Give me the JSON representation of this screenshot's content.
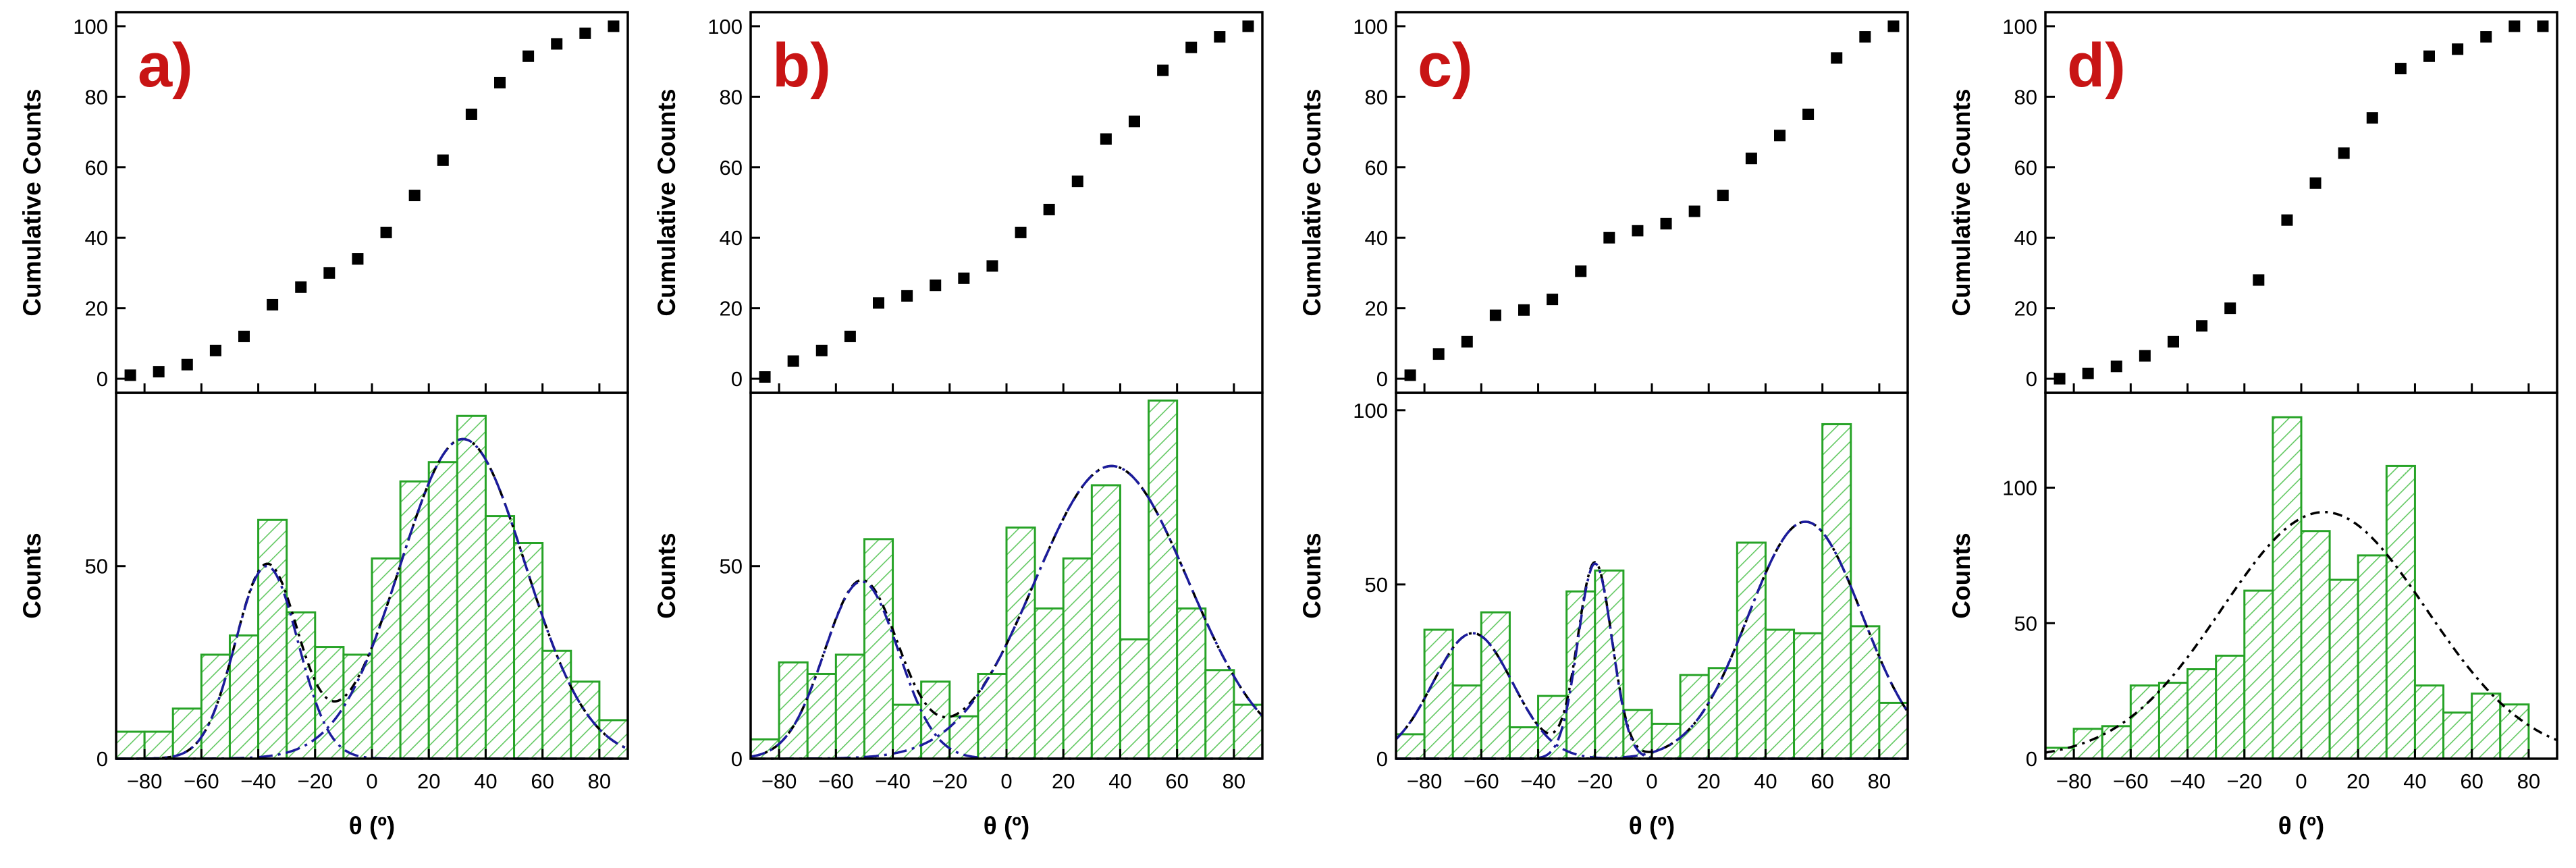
{
  "colors": {
    "bar_edge": "#27a327",
    "bar_hatch": "#62c862",
    "component_fit": "#1c1c9c",
    "total_fit": "#000000",
    "panel_label": "#c81414",
    "point": "#000000"
  },
  "chart_data": [
    {
      "panel": "a)",
      "type": "bar",
      "description": "Histogram of θ with Gaussian fits (bottom) and cumulative counts (top)",
      "xlabel": "θ (º)",
      "xlim": [
        -90,
        90
      ],
      "x_ticks": [
        -80,
        -60,
        -40,
        -20,
        0,
        20,
        40,
        60,
        80
      ],
      "cumulative": {
        "ylabel": "Cumulative Counts",
        "ylim": [
          -4,
          104
        ],
        "y_ticks": [
          0,
          20,
          40,
          60,
          80,
          100
        ],
        "x": [
          -85,
          -75,
          -65,
          -55,
          -45,
          -35,
          -25,
          -15,
          -5,
          5,
          15,
          25,
          35,
          45,
          55,
          65,
          75,
          85
        ],
        "y": [
          1,
          2,
          4,
          8,
          12,
          21,
          26,
          30,
          34,
          41.5,
          52,
          62,
          75,
          84,
          91.5,
          95,
          98,
          100
        ]
      },
      "histogram": {
        "ylabel": "Counts",
        "ylim": [
          0,
          95
        ],
        "y_ticks": [
          0,
          50
        ],
        "bin_width": 10,
        "bin_centers": [
          -85,
          -75,
          -65,
          -55,
          -45,
          -35,
          -25,
          -15,
          -5,
          5,
          15,
          25,
          35,
          45,
          55,
          65,
          75,
          85
        ],
        "values": [
          7,
          7,
          13,
          27,
          32,
          62,
          38,
          29,
          27,
          52,
          72,
          77,
          89,
          63,
          56,
          28,
          20,
          10
        ],
        "gaussian_components": [
          {
            "center": -37,
            "sigma": 11,
            "amplitude": 50
          },
          {
            "center": 32,
            "sigma": 22,
            "amplitude": 83
          }
        ],
        "total_fit_visible": true
      }
    },
    {
      "panel": "b)",
      "type": "bar",
      "description": "Histogram of θ with Gaussian fits (bottom) and cumulative counts (top)",
      "xlabel": "θ (º)",
      "xlim": [
        -90,
        90
      ],
      "x_ticks": [
        -80,
        -60,
        -40,
        -20,
        0,
        20,
        40,
        60,
        80
      ],
      "cumulative": {
        "ylabel": "Cumulative Counts",
        "ylim": [
          -4,
          104
        ],
        "y_ticks": [
          0,
          20,
          40,
          60,
          80,
          100
        ],
        "x": [
          -85,
          -75,
          -65,
          -55,
          -45,
          -35,
          -25,
          -15,
          -5,
          5,
          15,
          25,
          35,
          45,
          55,
          65,
          75,
          85
        ],
        "y": [
          0.5,
          5,
          8,
          12,
          21.5,
          23.5,
          26.5,
          28.5,
          32,
          41.5,
          48,
          56,
          68,
          73,
          87.5,
          94,
          97,
          100
        ]
      },
      "histogram": {
        "ylabel": "Counts",
        "ylim": [
          0,
          95
        ],
        "y_ticks": [
          0,
          50
        ],
        "bin_width": 10,
        "bin_centers": [
          -85,
          -75,
          -65,
          -55,
          -45,
          -35,
          -25,
          -15,
          -5,
          5,
          15,
          25,
          35,
          45,
          55,
          65,
          75,
          85
        ],
        "values": [
          5,
          25,
          22,
          27,
          57,
          14,
          20,
          11,
          22,
          60,
          39,
          52,
          71,
          31,
          93,
          39,
          23,
          14
        ],
        "gaussian_components": [
          {
            "center": -51,
            "sigma": 13,
            "amplitude": 46
          },
          {
            "center": 37,
            "sigma": 27,
            "amplitude": 76
          }
        ],
        "total_fit_visible": true
      }
    },
    {
      "panel": "c)",
      "type": "bar",
      "description": "Histogram of θ with Gaussian fits (bottom) and cumulative counts (top)",
      "xlabel": "θ (º)",
      "xlim": [
        -90,
        90
      ],
      "x_ticks": [
        -80,
        -60,
        -40,
        -20,
        0,
        20,
        40,
        60,
        80
      ],
      "cumulative": {
        "ylabel": "Cumulative Counts",
        "ylim": [
          -4,
          104
        ],
        "y_ticks": [
          0,
          20,
          40,
          60,
          80,
          100
        ],
        "x": [
          -85,
          -75,
          -65,
          -55,
          -45,
          -35,
          -25,
          -15,
          -5,
          5,
          15,
          25,
          35,
          45,
          55,
          65,
          75,
          85
        ],
        "y": [
          1,
          7,
          10.5,
          18,
          19.5,
          22.5,
          30.5,
          40,
          42,
          44,
          47.5,
          52,
          62.5,
          69,
          75,
          91,
          97,
          100
        ]
      },
      "histogram": {
        "ylabel": "Counts",
        "ylim": [
          0,
          105
        ],
        "y_ticks": [
          0,
          50,
          100
        ],
        "bin_width": 10,
        "bin_centers": [
          -85,
          -75,
          -65,
          -55,
          -45,
          -35,
          -25,
          -15,
          -5,
          5,
          15,
          25,
          35,
          45,
          55,
          65,
          75,
          85
        ],
        "values": [
          7,
          37,
          21,
          42,
          9,
          18,
          48,
          54,
          14,
          10,
          24,
          26,
          62,
          37,
          36,
          96,
          38,
          16
        ],
        "gaussian_components": [
          {
            "center": -63,
            "sigma": 14,
            "amplitude": 36
          },
          {
            "center": -20,
            "sigma": 6,
            "amplitude": 56
          },
          {
            "center": 54,
            "sigma": 20,
            "amplitude": 68
          }
        ],
        "total_fit_visible": true
      }
    },
    {
      "panel": "d)",
      "type": "bar",
      "description": "Histogram of θ with a single Gaussian fit (bottom) and cumulative counts (top)",
      "xlabel": "θ (º)",
      "xlim": [
        -90,
        90
      ],
      "x_ticks": [
        -80,
        -60,
        -40,
        -20,
        0,
        20,
        40,
        60,
        80
      ],
      "cumulative": {
        "ylabel": "Cumulative Counts",
        "ylim": [
          -4,
          104
        ],
        "y_ticks": [
          0,
          20,
          40,
          60,
          80,
          100
        ],
        "x": [
          -85,
          -75,
          -65,
          -55,
          -45,
          -35,
          -25,
          -15,
          -5,
          5,
          15,
          25,
          35,
          45,
          55,
          65,
          75,
          85
        ],
        "y": [
          0,
          1.5,
          3.5,
          6.5,
          10.5,
          15,
          20,
          28,
          45,
          55.5,
          64,
          74,
          88,
          91.5,
          93.5,
          97,
          100,
          100
        ]
      },
      "histogram": {
        "ylabel": "Counts",
        "ylim": [
          0,
          135
        ],
        "y_ticks": [
          0,
          50,
          100
        ],
        "bin_width": 10,
        "bin_centers": [
          -85,
          -75,
          -65,
          -55,
          -45,
          -35,
          -25,
          -15,
          -5,
          5,
          15,
          25,
          35,
          45,
          55,
          65,
          75,
          85
        ],
        "values": [
          4,
          11,
          12,
          27,
          28,
          33,
          38,
          62,
          126,
          84,
          66,
          75,
          108,
          27,
          17,
          24,
          20,
          0
        ],
        "gaussian_components": [],
        "single_fit": {
          "center": 8,
          "sigma": 36,
          "amplitude": 91
        },
        "total_fit_visible": true
      }
    }
  ]
}
